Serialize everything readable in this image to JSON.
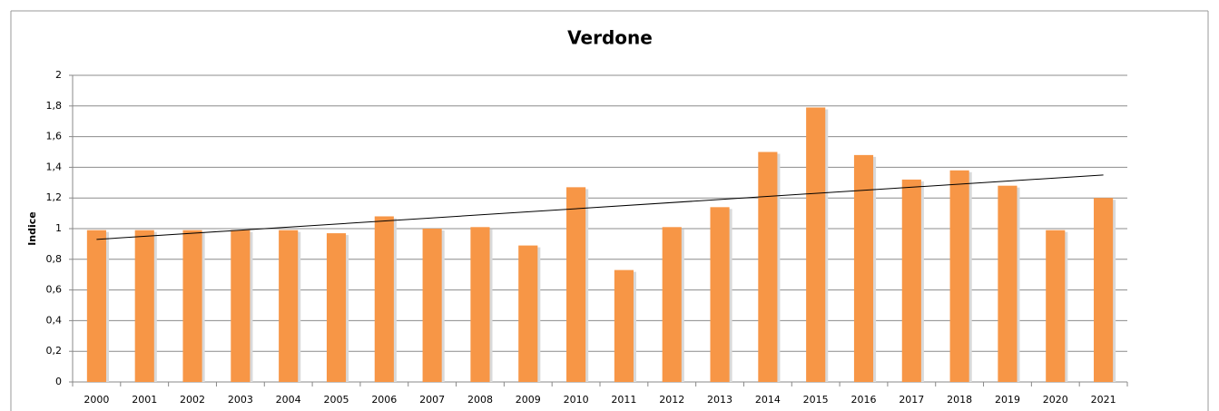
{
  "chart_data": {
    "type": "bar",
    "title": "Verdone",
    "y_label": "Indice",
    "categories": [
      "2000",
      "2001",
      "2002",
      "2003",
      "2004",
      "2005",
      "2006",
      "2007",
      "2008",
      "2009",
      "2010",
      "2011",
      "2012",
      "2013",
      "2014",
      "2015",
      "2016",
      "2017",
      "2018",
      "2019",
      "2020",
      "2021"
    ],
    "values": [
      0.99,
      0.99,
      0.99,
      0.99,
      0.99,
      0.97,
      1.08,
      1.0,
      1.01,
      0.89,
      1.27,
      0.73,
      1.01,
      1.14,
      1.5,
      1.79,
      1.48,
      1.32,
      1.38,
      1.28,
      0.99,
      1.2
    ],
    "color": "#f79646",
    "trendline": {
      "color": "#000000",
      "values": [
        0.93,
        1.35
      ]
    },
    "ylim": [
      0,
      2
    ],
    "yticks": [
      0,
      {
        "value": 0.2,
        "label": "0,2"
      },
      {
        "value": 0.4,
        "label": "0,4"
      },
      {
        "value": 0.6,
        "label": "0,6"
      },
      {
        "value": 0.8,
        "label": "0,8"
      },
      1,
      {
        "value": 1.2,
        "label": "1,2"
      },
      {
        "value": 1.4,
        "label": "1,4"
      },
      {
        "value": 1.6,
        "label": "1,6"
      },
      {
        "value": 1.8,
        "label": "1,8"
      },
      2
    ],
    "grid": true
  }
}
